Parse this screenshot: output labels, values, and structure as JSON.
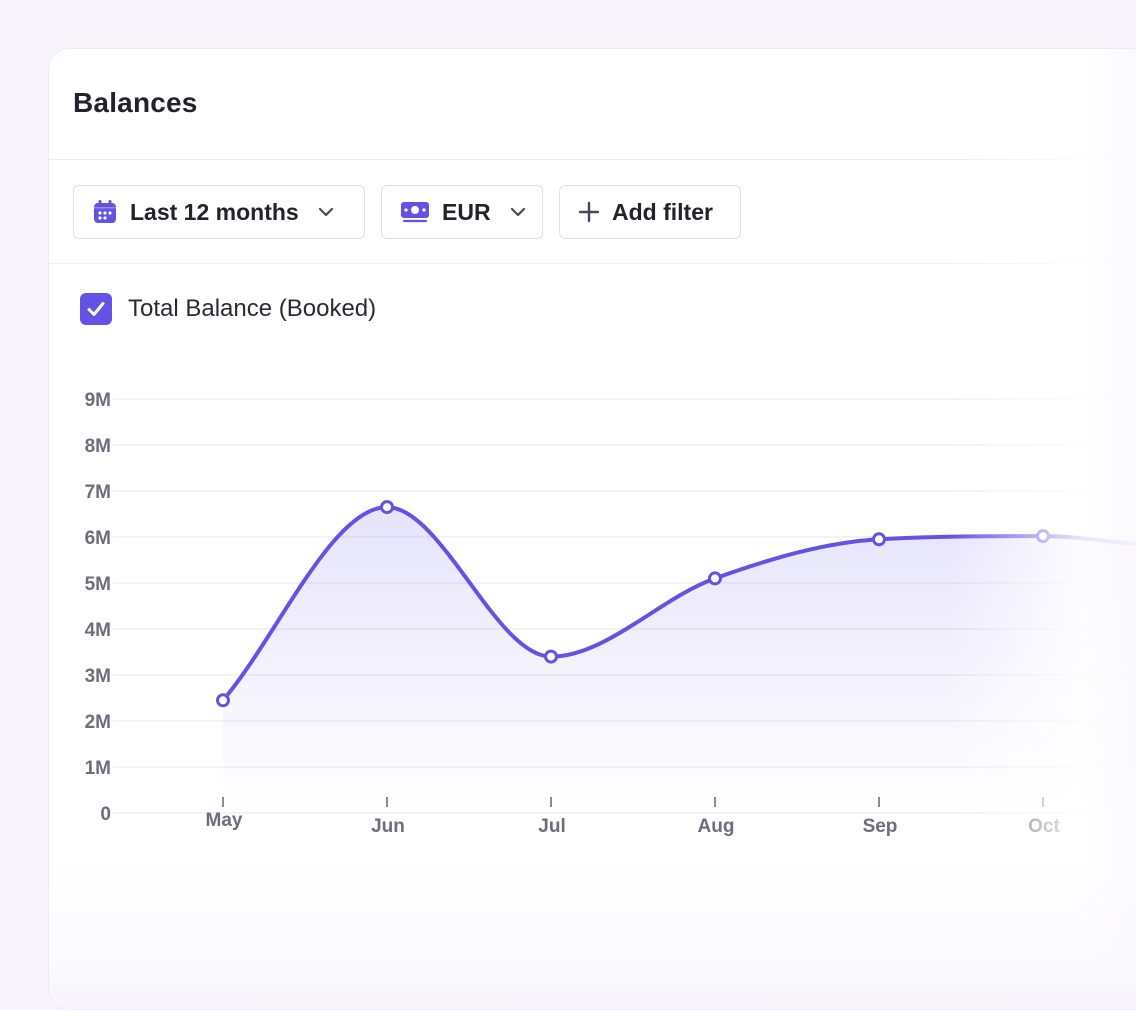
{
  "card": {
    "title": "Balances"
  },
  "filters": {
    "period_label": "Last 12 months",
    "currency_label": "EUR",
    "add_filter_label": "Add filter"
  },
  "legend": {
    "label": "Total Balance (Booked)",
    "checked": true
  },
  "colors": {
    "accent": "#6452e5",
    "grid": "#efeef3",
    "axis_text": "#6f6d7b"
  },
  "chart_data": {
    "type": "area",
    "categories": [
      "May",
      "Jun",
      "Jul",
      "Aug",
      "Sep",
      "Oct"
    ],
    "series": [
      {
        "name": "Total Balance (Booked)",
        "values": [
          2.45,
          6.65,
          3.4,
          5.1,
          5.95,
          6.02
        ]
      }
    ],
    "y_ticks": [
      "0",
      "1M",
      "2M",
      "3M",
      "4M",
      "5M",
      "6M",
      "7M",
      "8M",
      "9M"
    ],
    "ylim": [
      0,
      9
    ],
    "grid": true,
    "markers": true
  }
}
